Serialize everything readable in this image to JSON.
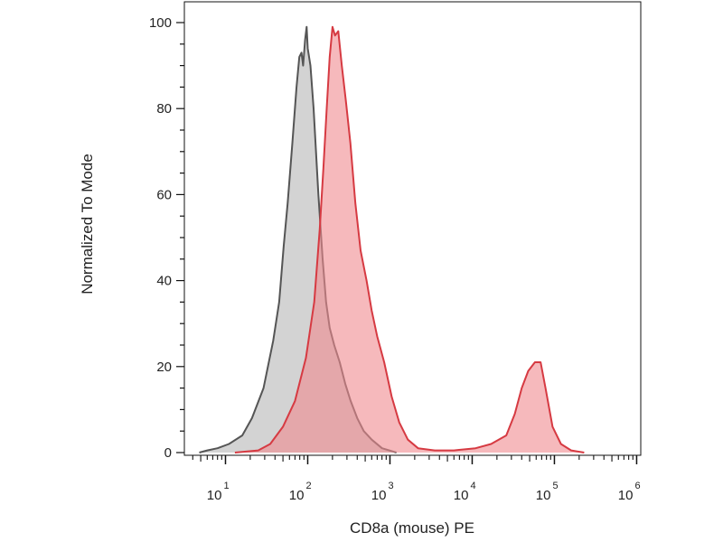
{
  "chart_data": {
    "type": "area",
    "title": "",
    "xlabel": "CD8a (mouse) PE",
    "ylabel": "Normalized To Mode",
    "x_scale": "log",
    "xlim": [
      3,
      1000000
    ],
    "ylim": [
      0,
      105
    ],
    "x_ticks": [
      {
        "base": "10",
        "exp": "1",
        "value": 10
      },
      {
        "base": "10",
        "exp": "2",
        "value": 100
      },
      {
        "base": "10",
        "exp": "3",
        "value": 1000
      },
      {
        "base": "10",
        "exp": "4",
        "value": 10000
      },
      {
        "base": "10",
        "exp": "5",
        "value": 100000
      },
      {
        "base": "10",
        "exp": "6",
        "value": 1000000
      }
    ],
    "y_ticks": [
      0,
      20,
      40,
      60,
      80,
      100
    ],
    "grid": false,
    "series": [
      {
        "color_fill": "#b5b5b5",
        "color_line": "#555555",
        "points": [
          [
            4.8,
            0
          ],
          [
            6,
            0.5
          ],
          [
            8,
            1
          ],
          [
            11,
            2
          ],
          [
            16,
            4
          ],
          [
            21,
            8
          ],
          [
            29,
            15
          ],
          [
            38,
            26
          ],
          [
            45,
            35
          ],
          [
            51,
            48
          ],
          [
            57,
            58
          ],
          [
            65,
            72
          ],
          [
            73,
            85
          ],
          [
            79,
            92
          ],
          [
            84,
            93
          ],
          [
            88,
            90
          ],
          [
            93,
            96
          ],
          [
            97,
            99
          ],
          [
            100,
            94
          ],
          [
            108,
            90
          ],
          [
            118,
            80
          ],
          [
            135,
            60
          ],
          [
            152,
            45
          ],
          [
            167,
            35
          ],
          [
            185,
            29
          ],
          [
            210,
            25
          ],
          [
            245,
            21
          ],
          [
            286,
            16
          ],
          [
            333,
            12
          ],
          [
            400,
            8
          ],
          [
            480,
            5
          ],
          [
            600,
            3
          ],
          [
            800,
            1
          ],
          [
            1200,
            0
          ]
        ]
      },
      {
        "color_fill": "#f08a90",
        "color_line": "#d63a42",
        "points": [
          [
            13,
            0
          ],
          [
            25,
            0.5
          ],
          [
            35,
            2
          ],
          [
            50,
            6
          ],
          [
            70,
            12
          ],
          [
            95,
            22
          ],
          [
            120,
            35
          ],
          [
            140,
            52
          ],
          [
            155,
            66
          ],
          [
            170,
            80
          ],
          [
            185,
            92
          ],
          [
            200,
            99
          ],
          [
            215,
            97
          ],
          [
            235,
            98
          ],
          [
            260,
            90
          ],
          [
            290,
            82
          ],
          [
            330,
            72
          ],
          [
            380,
            58
          ],
          [
            440,
            47
          ],
          [
            520,
            40
          ],
          [
            600,
            33
          ],
          [
            700,
            27
          ],
          [
            850,
            21
          ],
          [
            1050,
            13
          ],
          [
            1300,
            7
          ],
          [
            1650,
            3
          ],
          [
            2200,
            1
          ],
          [
            3500,
            0.5
          ],
          [
            6000,
            0.5
          ],
          [
            11000,
            1
          ],
          [
            17000,
            2
          ],
          [
            26000,
            4
          ],
          [
            33000,
            9
          ],
          [
            40000,
            15
          ],
          [
            48000,
            19
          ],
          [
            58000,
            21
          ],
          [
            68000,
            21
          ],
          [
            78000,
            15
          ],
          [
            95000,
            6
          ],
          [
            120000,
            2
          ],
          [
            160000,
            0.5
          ],
          [
            230000,
            0
          ]
        ]
      }
    ]
  }
}
